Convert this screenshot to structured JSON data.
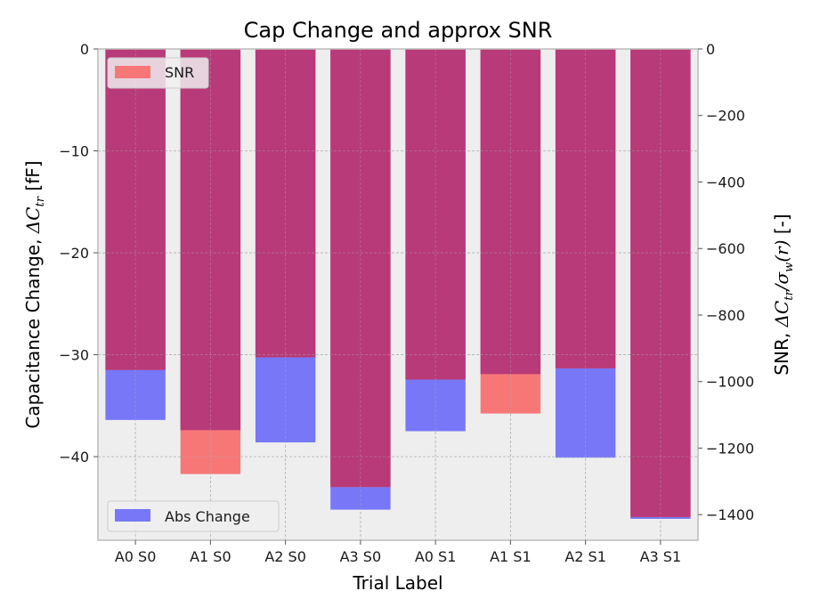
{
  "chart_data": {
    "type": "bar",
    "title": "Cap Change and approx SNR",
    "xlabel": "Trial Label",
    "categories": [
      "A0 S0",
      "A1 S0",
      "A2 S0",
      "A3 S0",
      "A0 S1",
      "A1 S1",
      "A2 S1",
      "A3 S1"
    ],
    "left_axis": {
      "label_prefix": "Capacitance Change, ",
      "label_math": "ΔC",
      "label_sub": "tr",
      "label_suffix": " [fF]",
      "ylim": [
        -48.2,
        0
      ],
      "ticks": [
        0,
        -10,
        -20,
        -30,
        -40
      ],
      "tick_labels": [
        "0",
        "−10",
        "−20",
        "−30",
        "−40"
      ]
    },
    "right_axis": {
      "label_prefix": "SNR, ",
      "label_math": "ΔC",
      "label_sub": "tr",
      "label_mid": "/σ",
      "label_sub2": "w",
      "label_tail": "(r)",
      "label_suffix": " [-]",
      "ylim": [
        -1477,
        0
      ],
      "ticks": [
        0,
        -200,
        -400,
        -600,
        -800,
        -1000,
        -1200,
        -1400
      ],
      "tick_labels": [
        "0",
        "−200",
        "−400",
        "−600",
        "−800",
        "−1000",
        "−1200",
        "−1400"
      ]
    },
    "series": [
      {
        "name": "Abs Change",
        "axis": "left",
        "color": "#7777f7",
        "values": [
          -36.4,
          -37.4,
          -38.6,
          -45.2,
          -37.5,
          -31.9,
          -40.1,
          -46.1
        ]
      },
      {
        "name": "SNR",
        "axis": "right",
        "color": "#f77777",
        "values": [
          -965,
          -1278,
          -927,
          -1317,
          -994,
          -1096,
          -960,
          -1407
        ]
      }
    ],
    "legend": [
      {
        "label": "SNR",
        "color": "#f77777",
        "position": "upper-left"
      },
      {
        "label": "Abs Change",
        "color": "#7777f7",
        "position": "lower-left"
      }
    ],
    "grid": true,
    "overlap_color": "#b83a78"
  }
}
